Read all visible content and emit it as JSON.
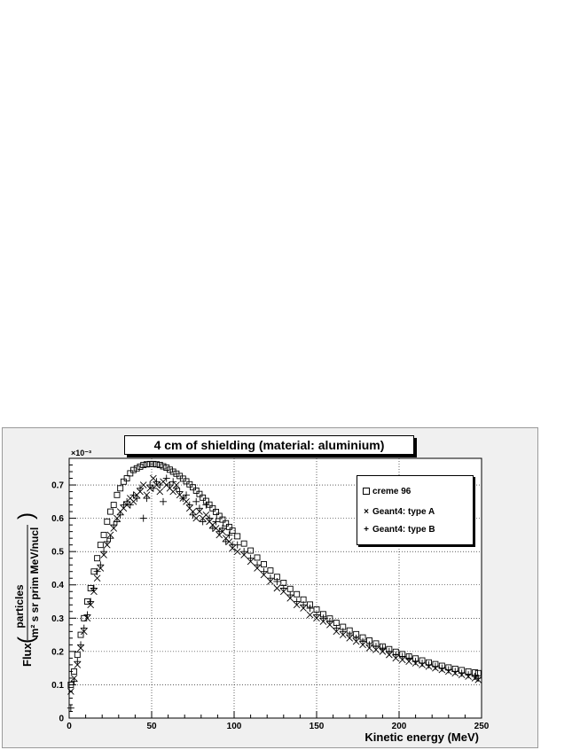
{
  "chart_data": {
    "type": "scatter",
    "title": "4 cm of shielding (material: aluminium)",
    "xlabel": "Kinetic energy (MeV)",
    "ylabel_prefix": "Flux",
    "ylabel_numerator": "particles",
    "ylabel_denominator": "m² s sr prim MeV/nucl",
    "y_multiplier": "×10⁻³",
    "xlim": [
      0,
      250
    ],
    "ylim": [
      0,
      0.78
    ],
    "x_ticks": [
      "0",
      "50",
      "100",
      "150",
      "200",
      "250"
    ],
    "y_ticks": [
      "0",
      "0.1",
      "0.2",
      "0.3",
      "0.4",
      "0.5",
      "0.6",
      "0.7"
    ],
    "grid": true,
    "legend_position": "top-right",
    "series": [
      {
        "name": "creme 96",
        "marker": "open-square",
        "x": [
          1,
          3,
          5,
          7,
          9,
          11,
          13,
          15,
          17,
          19,
          21,
          23,
          25,
          27,
          29,
          31,
          33,
          35,
          37,
          39,
          41,
          43,
          45,
          47,
          49,
          51,
          53,
          55,
          57,
          59,
          61,
          63,
          65,
          67,
          69,
          71,
          73,
          75,
          77,
          79,
          81,
          83,
          85,
          87,
          89,
          91,
          93,
          95,
          97,
          99,
          102,
          106,
          110,
          114,
          118,
          122,
          126,
          130,
          134,
          138,
          142,
          146,
          150,
          154,
          158,
          162,
          166,
          170,
          174,
          178,
          182,
          186,
          190,
          194,
          198,
          202,
          206,
          210,
          214,
          218,
          222,
          226,
          230,
          234,
          238,
          242,
          246,
          248
        ],
        "y": [
          0.1,
          0.14,
          0.19,
          0.25,
          0.3,
          0.35,
          0.39,
          0.44,
          0.48,
          0.52,
          0.55,
          0.59,
          0.62,
          0.64,
          0.67,
          0.69,
          0.71,
          0.72,
          0.735,
          0.745,
          0.75,
          0.755,
          0.76,
          0.762,
          0.763,
          0.763,
          0.762,
          0.76,
          0.756,
          0.752,
          0.746,
          0.74,
          0.734,
          0.727,
          0.719,
          0.711,
          0.702,
          0.693,
          0.683,
          0.673,
          0.662,
          0.652,
          0.641,
          0.63,
          0.619,
          0.607,
          0.596,
          0.585,
          0.574,
          0.563,
          0.546,
          0.524,
          0.503,
          0.482,
          0.462,
          0.443,
          0.424,
          0.406,
          0.388,
          0.372,
          0.356,
          0.341,
          0.326,
          0.312,
          0.299,
          0.286,
          0.274,
          0.263,
          0.252,
          0.242,
          0.233,
          0.224,
          0.215,
          0.207,
          0.199,
          0.192,
          0.185,
          0.179,
          0.173,
          0.167,
          0.162,
          0.157,
          0.152,
          0.148,
          0.144,
          0.14,
          0.137,
          0.135
        ]
      },
      {
        "name": "Geant4: type A",
        "marker": "x",
        "x": [
          1,
          3,
          5,
          7,
          9,
          11,
          13,
          15,
          17,
          19,
          21,
          23,
          25,
          27,
          29,
          31,
          33,
          35,
          37,
          39,
          41,
          43,
          45,
          47,
          49,
          51,
          53,
          55,
          57,
          59,
          61,
          63,
          65,
          67,
          69,
          71,
          73,
          75,
          77,
          79,
          81,
          83,
          85,
          87,
          89,
          91,
          93,
          95,
          97,
          99,
          102,
          106,
          110,
          114,
          118,
          122,
          126,
          130,
          134,
          138,
          142,
          146,
          150,
          154,
          158,
          162,
          166,
          170,
          174,
          178,
          182,
          186,
          190,
          194,
          198,
          202,
          206,
          210,
          214,
          218,
          222,
          226,
          230,
          234,
          238,
          242,
          246,
          248
        ],
        "y": [
          0.08,
          0.12,
          0.16,
          0.21,
          0.26,
          0.3,
          0.34,
          0.38,
          0.42,
          0.45,
          0.49,
          0.52,
          0.55,
          0.57,
          0.6,
          0.62,
          0.63,
          0.64,
          0.66,
          0.65,
          0.67,
          0.68,
          0.7,
          0.67,
          0.69,
          0.72,
          0.7,
          0.68,
          0.71,
          0.7,
          0.69,
          0.68,
          0.7,
          0.67,
          0.66,
          0.65,
          0.63,
          0.62,
          0.6,
          0.62,
          0.6,
          0.61,
          0.59,
          0.58,
          0.57,
          0.55,
          0.56,
          0.54,
          0.53,
          0.51,
          0.5,
          0.49,
          0.47,
          0.45,
          0.43,
          0.41,
          0.39,
          0.38,
          0.36,
          0.34,
          0.33,
          0.31,
          0.3,
          0.29,
          0.28,
          0.26,
          0.25,
          0.24,
          0.23,
          0.22,
          0.21,
          0.205,
          0.2,
          0.19,
          0.18,
          0.175,
          0.17,
          0.165,
          0.16,
          0.155,
          0.15,
          0.145,
          0.14,
          0.135,
          0.13,
          0.125,
          0.12,
          0.115
        ]
      },
      {
        "name": "Geant4: type B",
        "marker": "+",
        "x": [
          1,
          3,
          5,
          7,
          9,
          11,
          13,
          15,
          17,
          19,
          21,
          23,
          25,
          27,
          29,
          31,
          33,
          35,
          37,
          39,
          41,
          43,
          45,
          47,
          49,
          51,
          53,
          55,
          57,
          59,
          61,
          63,
          65,
          67,
          69,
          71,
          73,
          75,
          77,
          79,
          81,
          83,
          85,
          87,
          89,
          91,
          93,
          95,
          97,
          99,
          102,
          106,
          110,
          114,
          118,
          122,
          126,
          130,
          134,
          138,
          142,
          146,
          150,
          154,
          158,
          162,
          166,
          170,
          174,
          178,
          182,
          186,
          190,
          194,
          198,
          202,
          206,
          210,
          214,
          218,
          222,
          226,
          230,
          234,
          238,
          242,
          246,
          248
        ],
        "y": [
          0.03,
          0.11,
          0.17,
          0.22,
          0.27,
          0.31,
          0.35,
          0.39,
          0.44,
          0.46,
          0.5,
          0.53,
          0.54,
          0.58,
          0.59,
          0.61,
          0.64,
          0.65,
          0.64,
          0.67,
          0.66,
          0.69,
          0.6,
          0.66,
          0.7,
          0.69,
          0.71,
          0.7,
          0.65,
          0.72,
          0.7,
          0.71,
          0.69,
          0.68,
          0.66,
          0.67,
          0.64,
          0.61,
          0.65,
          0.63,
          0.59,
          0.64,
          0.6,
          0.57,
          0.59,
          0.56,
          0.57,
          0.53,
          0.55,
          0.52,
          0.52,
          0.5,
          0.48,
          0.46,
          0.44,
          0.42,
          0.41,
          0.39,
          0.37,
          0.35,
          0.34,
          0.33,
          0.31,
          0.3,
          0.29,
          0.27,
          0.26,
          0.25,
          0.24,
          0.23,
          0.22,
          0.215,
          0.21,
          0.2,
          0.19,
          0.185,
          0.18,
          0.17,
          0.165,
          0.16,
          0.155,
          0.15,
          0.145,
          0.14,
          0.135,
          0.13,
          0.125,
          0.12
        ]
      }
    ]
  }
}
